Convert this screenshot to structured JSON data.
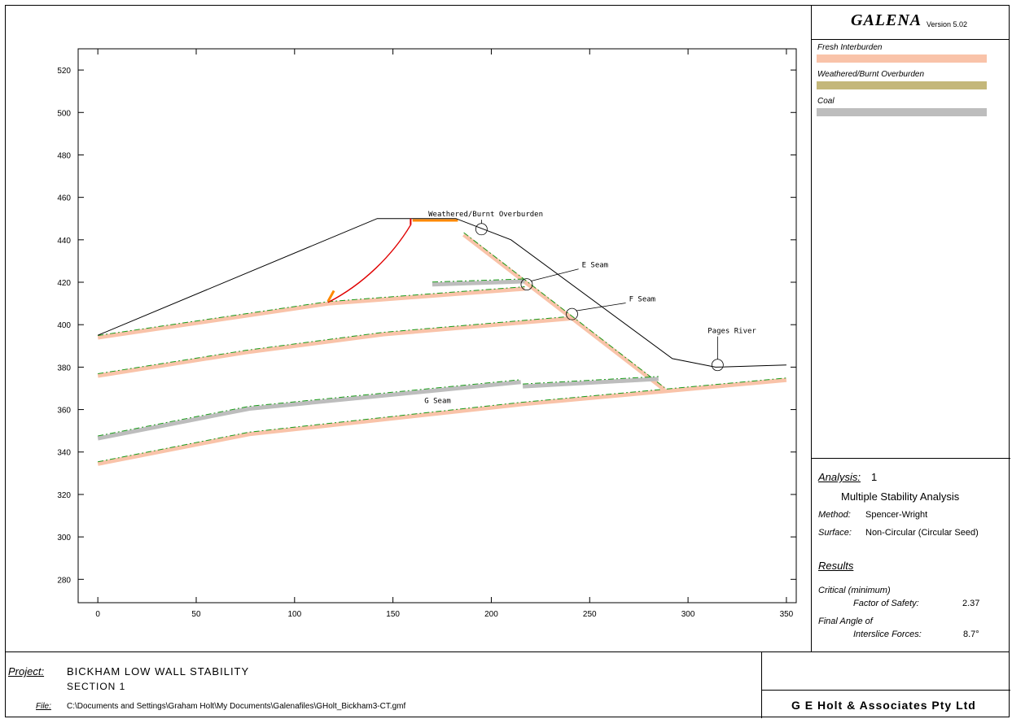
{
  "app": {
    "title": "GALENA",
    "version": "Version 5.02"
  },
  "legend": {
    "items": [
      {
        "label": "Fresh Interburden",
        "color": "#f9c3a9"
      },
      {
        "label": "Weathered/Burnt Overburden",
        "color": "#c4b77a"
      },
      {
        "label": "Coal",
        "color": "#bdbdbd"
      }
    ]
  },
  "analysis": {
    "label": "Analysis:",
    "number": "1",
    "type": "Multiple Stability Analysis",
    "method_label": "Method:",
    "method_value": "Spencer-Wright",
    "surface_label": "Surface:",
    "surface_value": "Non-Circular (Circular Seed)",
    "results_label": "Results",
    "critical_label": "Critical (minimum)",
    "fos_label": "Factor of Safety:",
    "fos_value": "2.37",
    "angle_label_1": "Final Angle of",
    "angle_label_2": "Interslice Forces:",
    "angle_value": "8.7°"
  },
  "project": {
    "label": "Project:",
    "name": "BICKHAM LOW WALL STABILITY",
    "section": "SECTION 1",
    "file_label": "File:",
    "file_path": "C:\\Documents and Settings\\Graham Holt\\My Documents\\Galenafiles\\GHolt_Bickham3-CT.gmf",
    "company": "G E Holt & Associates Pty Ltd"
  },
  "chart_data": {
    "type": "cross-section",
    "xlim": [
      -10,
      355
    ],
    "ylim": [
      269,
      530
    ],
    "x_ticks": [
      0,
      50,
      100,
      150,
      200,
      250,
      300,
      350
    ],
    "y_ticks": [
      280,
      300,
      320,
      340,
      360,
      380,
      400,
      420,
      440,
      460,
      480,
      500,
      520
    ],
    "colors": {
      "interburden": "#f9c3a9",
      "overburden": "#c4b77a",
      "coal": "#bdbdbd",
      "water": "#1a9b1a",
      "surface": "#000000",
      "slip": "#e00000",
      "slip_orange": "#ff8800"
    },
    "ground_surface": [
      [
        0,
        395
      ],
      [
        142,
        450
      ],
      [
        182,
        450
      ],
      [
        210,
        440
      ],
      [
        292,
        384
      ],
      [
        314,
        380
      ],
      [
        350,
        381
      ]
    ],
    "interburden_layers": [
      [
        [
          0,
          394.5
        ],
        [
          117,
          410.5
        ],
        [
          217,
          417.5
        ]
      ],
      [
        [
          0,
          376.5
        ],
        [
          75,
          387.5
        ],
        [
          145,
          396
        ],
        [
          240,
          403.5
        ]
      ],
      [
        [
          0,
          335
        ],
        [
          77,
          349
        ],
        [
          215,
          363
        ],
        [
          350,
          374.5
        ]
      ],
      [
        [
          186,
          443
        ],
        [
          288,
          370
        ]
      ]
    ],
    "coal_layers": [
      [
        [
          170,
          419.5
        ],
        [
          217,
          421
        ]
      ],
      [
        [
          0,
          347
        ],
        [
          77,
          361
        ],
        [
          215,
          373.5
        ]
      ],
      [
        [
          216,
          371.5
        ],
        [
          285,
          375
        ]
      ]
    ],
    "overburden_cap": [
      [
        160,
        449.5
      ],
      [
        183,
        449.5
      ]
    ],
    "slip_surface": [
      [
        117,
        410.5
      ],
      [
        135,
        419
      ],
      [
        150,
        433
      ],
      [
        159,
        447
      ]
    ],
    "annotations": [
      {
        "text": "Weathered/Burnt Overburden",
        "circle": [
          195,
          445
        ],
        "label_at": [
          168,
          451
        ]
      },
      {
        "text": "E Seam",
        "circle": [
          218,
          419
        ],
        "label_at": [
          246,
          427
        ]
      },
      {
        "text": "F Seam",
        "circle": [
          241,
          405
        ],
        "label_at": [
          270,
          411
        ]
      },
      {
        "text": "Pages River",
        "circle": [
          315,
          381
        ],
        "label_at": [
          310,
          396
        ]
      },
      {
        "text": "G Seam",
        "circle": null,
        "label_at": [
          166,
          363
        ]
      }
    ]
  }
}
